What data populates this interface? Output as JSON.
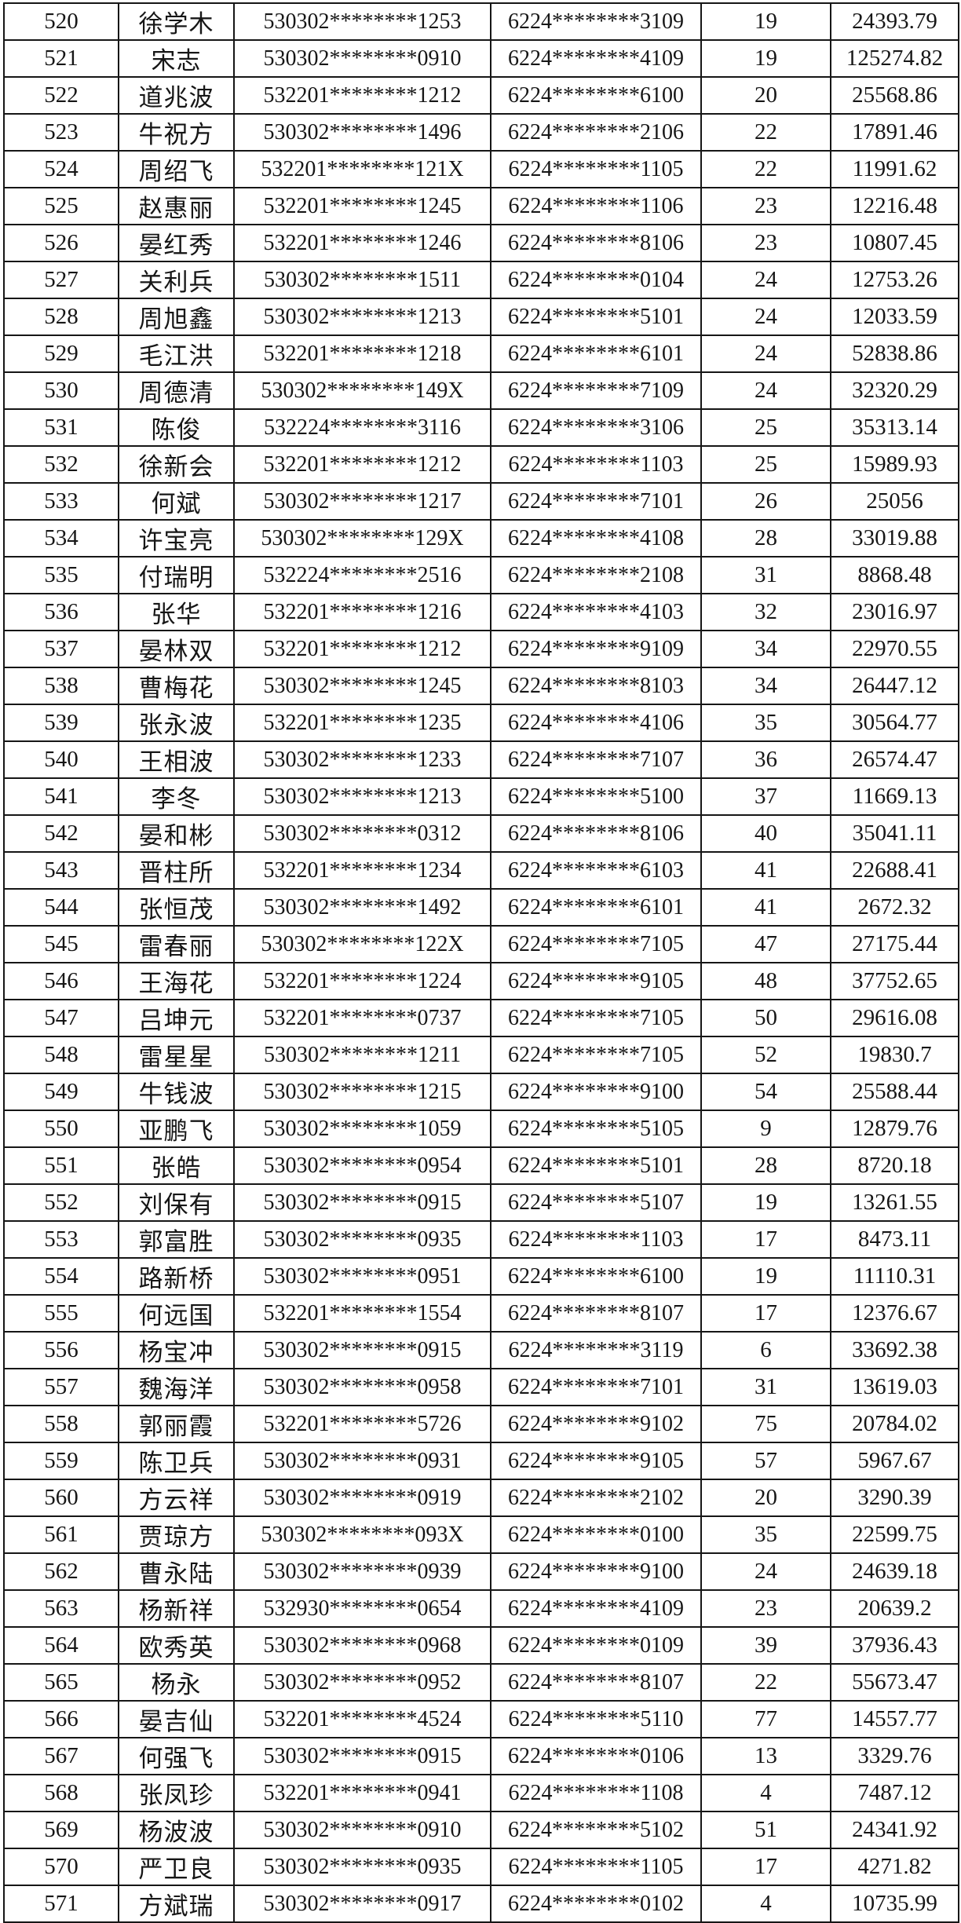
{
  "colors": {
    "background": "#ffffff",
    "border": "#161616",
    "text": "#161616"
  },
  "table": {
    "column_keys": [
      "index",
      "name",
      "id_masked",
      "card_masked",
      "count",
      "amount"
    ],
    "rows": [
      [
        "520",
        "徐学木",
        "530302********1253",
        "6224********3109",
        "19",
        "24393.79"
      ],
      [
        "521",
        "宋志",
        "530302********0910",
        "6224********4109",
        "19",
        "125274.82"
      ],
      [
        "522",
        "道兆波",
        "532201********1212",
        "6224********6100",
        "20",
        "25568.86"
      ],
      [
        "523",
        "牛祝方",
        "530302********1496",
        "6224********2106",
        "22",
        "17891.46"
      ],
      [
        "524",
        "周绍飞",
        "532201********121X",
        "6224********1105",
        "22",
        "11991.62"
      ],
      [
        "525",
        "赵惠丽",
        "532201********1245",
        "6224********1106",
        "23",
        "12216.48"
      ],
      [
        "526",
        "晏红秀",
        "532201********1246",
        "6224********8106",
        "23",
        "10807.45"
      ],
      [
        "527",
        "关利兵",
        "530302********1511",
        "6224********0104",
        "24",
        "12753.26"
      ],
      [
        "528",
        "周旭鑫",
        "530302********1213",
        "6224********5101",
        "24",
        "12033.59"
      ],
      [
        "529",
        "毛江洪",
        "532201********1218",
        "6224********6101",
        "24",
        "52838.86"
      ],
      [
        "530",
        "周德清",
        "530302********149X",
        "6224********7109",
        "24",
        "32320.29"
      ],
      [
        "531",
        "陈俊",
        "532224********3116",
        "6224********3106",
        "25",
        "35313.14"
      ],
      [
        "532",
        "徐新会",
        "532201********1212",
        "6224********1103",
        "25",
        "15989.93"
      ],
      [
        "533",
        "何斌",
        "530302********1217",
        "6224********7101",
        "26",
        "25056"
      ],
      [
        "534",
        "许宝亮",
        "530302********129X",
        "6224********4108",
        "28",
        "33019.88"
      ],
      [
        "535",
        "付瑞明",
        "532224********2516",
        "6224********2108",
        "31",
        "8868.48"
      ],
      [
        "536",
        "张华",
        "532201********1216",
        "6224********4103",
        "32",
        "23016.97"
      ],
      [
        "537",
        "晏林双",
        "532201********1212",
        "6224********9109",
        "34",
        "22970.55"
      ],
      [
        "538",
        "曹梅花",
        "530302********1245",
        "6224********8103",
        "34",
        "26447.12"
      ],
      [
        "539",
        "张永波",
        "532201********1235",
        "6224********4106",
        "35",
        "30564.77"
      ],
      [
        "540",
        "王相波",
        "530302********1233",
        "6224********7107",
        "36",
        "26574.47"
      ],
      [
        "541",
        "李冬",
        "530302********1213",
        "6224********5100",
        "37",
        "11669.13"
      ],
      [
        "542",
        "晏和彬",
        "530302********0312",
        "6224********8106",
        "40",
        "35041.11"
      ],
      [
        "543",
        "晋柱所",
        "532201********1234",
        "6224********6103",
        "41",
        "22688.41"
      ],
      [
        "544",
        "张恒茂",
        "530302********1492",
        "6224********6101",
        "41",
        "2672.32"
      ],
      [
        "545",
        "雷春丽",
        "530302********122X",
        "6224********7105",
        "47",
        "27175.44"
      ],
      [
        "546",
        "王海花",
        "532201********1224",
        "6224********9105",
        "48",
        "37752.65"
      ],
      [
        "547",
        "吕坤元",
        "532201********0737",
        "6224********7105",
        "50",
        "29616.08"
      ],
      [
        "548",
        "雷星星",
        "530302********1211",
        "6224********7105",
        "52",
        "19830.7"
      ],
      [
        "549",
        "牛钱波",
        "530302********1215",
        "6224********9100",
        "54",
        "25588.44"
      ],
      [
        "550",
        "亚鹏飞",
        "530302********1059",
        "6224********5105",
        "9",
        "12879.76"
      ],
      [
        "551",
        "张皓",
        "530302********0954",
        "6224********5101",
        "28",
        "8720.18"
      ],
      [
        "552",
        "刘保有",
        "530302********0915",
        "6224********5107",
        "19",
        "13261.55"
      ],
      [
        "553",
        "郭富胜",
        "530302********0935",
        "6224********1103",
        "17",
        "8473.11"
      ],
      [
        "554",
        "路新桥",
        "530302********0951",
        "6224********6100",
        "19",
        "11110.31"
      ],
      [
        "555",
        "何远国",
        "532201********1554",
        "6224********8107",
        "17",
        "12376.67"
      ],
      [
        "556",
        "杨宝冲",
        "530302********0915",
        "6224********3119",
        "6",
        "33692.38"
      ],
      [
        "557",
        "魏海洋",
        "530302********0958",
        "6224********7101",
        "31",
        "13619.03"
      ],
      [
        "558",
        "郭丽霞",
        "532201********5726",
        "6224********9102",
        "75",
        "20784.02"
      ],
      [
        "559",
        "陈卫兵",
        "530302********0931",
        "6224********9105",
        "57",
        "5967.67"
      ],
      [
        "560",
        "方云祥",
        "530302********0919",
        "6224********2102",
        "20",
        "3290.39"
      ],
      [
        "561",
        "贾琼方",
        "530302********093X",
        "6224********0100",
        "35",
        "22599.75"
      ],
      [
        "562",
        "曹永陆",
        "530302********0939",
        "6224********9100",
        "24",
        "24639.18"
      ],
      [
        "563",
        "杨新祥",
        "532930********0654",
        "6224********4109",
        "23",
        "20639.2"
      ],
      [
        "564",
        "欧秀英",
        "530302********0968",
        "6224********0109",
        "39",
        "37936.43"
      ],
      [
        "565",
        "杨永",
        "530302********0952",
        "6224********8107",
        "22",
        "55673.47"
      ],
      [
        "566",
        "晏吉仙",
        "532201********4524",
        "6224********5110",
        "77",
        "14557.77"
      ],
      [
        "567",
        "何强飞",
        "530302********0915",
        "6224********0106",
        "13",
        "3329.76"
      ],
      [
        "568",
        "张凤珍",
        "532201********0941",
        "6224********1108",
        "4",
        "7487.12"
      ],
      [
        "569",
        "杨波波",
        "530302********0910",
        "6224********5102",
        "51",
        "24341.92"
      ],
      [
        "570",
        "严卫良",
        "530302********0935",
        "6224********1105",
        "17",
        "4271.82"
      ],
      [
        "571",
        "方斌瑞",
        "530302********0917",
        "6224********0102",
        "4",
        "10735.99"
      ]
    ]
  }
}
